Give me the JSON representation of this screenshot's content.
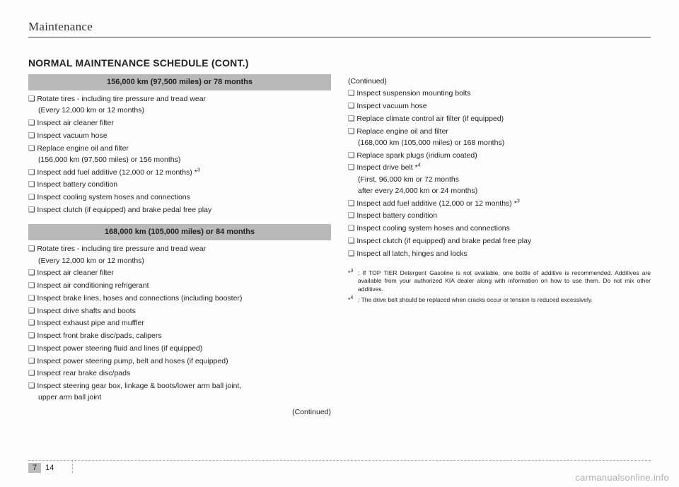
{
  "header": {
    "title": "Maintenance"
  },
  "section_title": "NORMAL MAINTENANCE SCHEDULE (CONT.)",
  "intervals": [
    {
      "header": "156,000 km (97,500 miles) or 78 months",
      "items": [
        {
          "t": "❑ Rotate tires - including tire pressure and tread wear",
          "sub": "(Every 12,000 km or 12 months)"
        },
        {
          "t": "❑ Inspect air cleaner filter"
        },
        {
          "t": "❑ Inspect vacuum hose"
        },
        {
          "t": "❑ Replace engine oil and filter",
          "sub": "(156,000 km (97,500 miles) or 156 months)"
        },
        {
          "t": "❑ Inspect add fuel additive (12,000 or 12 months) *",
          "sup": "3"
        },
        {
          "t": "❑ Inspect battery condition"
        },
        {
          "t": "❑ Inspect cooling system hoses and connections"
        },
        {
          "t": "❑ Inspect clutch (if equipped) and brake pedal free play"
        }
      ]
    },
    {
      "header": "168,000 km (105,000 miles) or 84 months",
      "items": [
        {
          "t": "❑ Rotate tires - including tire pressure and tread wear",
          "sub": "(Every 12,000 km or 12 months)"
        },
        {
          "t": "❑ Inspect air cleaner filter"
        },
        {
          "t": "❑ Inspect air conditioning refrigerant"
        },
        {
          "t": "❑ Inspect brake lines, hoses and connections (including booster)"
        },
        {
          "t": "❑ Inspect drive shafts and boots"
        },
        {
          "t": "❑ Inspect exhaust pipe and muffler"
        },
        {
          "t": "❑ Inspect front brake disc/pads, calipers"
        },
        {
          "t": "❑ Inspect power steering fluid and lines (if equipped)"
        },
        {
          "t": "❑ Inspect power steering pump, belt and hoses (if equipped)"
        },
        {
          "t": "❑ Inspect rear brake disc/pads"
        },
        {
          "t": "❑ Inspect steering gear box, linkage & boots/lower arm ball joint,",
          "sub": "upper arm ball joint"
        }
      ],
      "continued": "(Continued)"
    }
  ],
  "right": {
    "continued": "(Continued)",
    "items": [
      {
        "t": "❑ Inspect suspension mounting bolts"
      },
      {
        "t": "❑ Inspect vacuum hose"
      },
      {
        "t": "❑ Replace climate control air filter (if equipped)"
      },
      {
        "t": "❑ Replace engine oil and filter",
        "sub": "(168,000 km (105,000 miles) or 168 months)"
      },
      {
        "t": "❑ Replace spark plugs (iridium coated)"
      },
      {
        "t": "❑ Inspect drive belt *",
        "sup": "4",
        "sub": "(First, 96,000 km or 72 months",
        "sub2": " after every 24,000 km or 24 months)"
      },
      {
        "t": "❑ Inspect add fuel additive (12,000 or 12 months) *",
        "sup": "3"
      },
      {
        "t": "❑ Inspect battery condition"
      },
      {
        "t": "❑ Inspect cooling system hoses and connections"
      },
      {
        "t": "❑ Inspect clutch (if equipped) and brake pedal free play"
      },
      {
        "t": "❑ Inspect all latch, hinges and locks"
      }
    ]
  },
  "footnotes": [
    {
      "key": "*",
      "sup": "3",
      "text": ": If TOP TIER Detergent Gasoline is not available, one bottle of additive is recommended. Additives are available from your authorized KIA dealer along with information on how to use them. Do not mix other additives."
    },
    {
      "key": "*",
      "sup": "4",
      "text": ": The drive belt should be replaced when cracks occur or tension is reduced excessively."
    }
  ],
  "footer": {
    "chapter": "7",
    "page": "14"
  },
  "watermark": "carmanualsonline.info"
}
